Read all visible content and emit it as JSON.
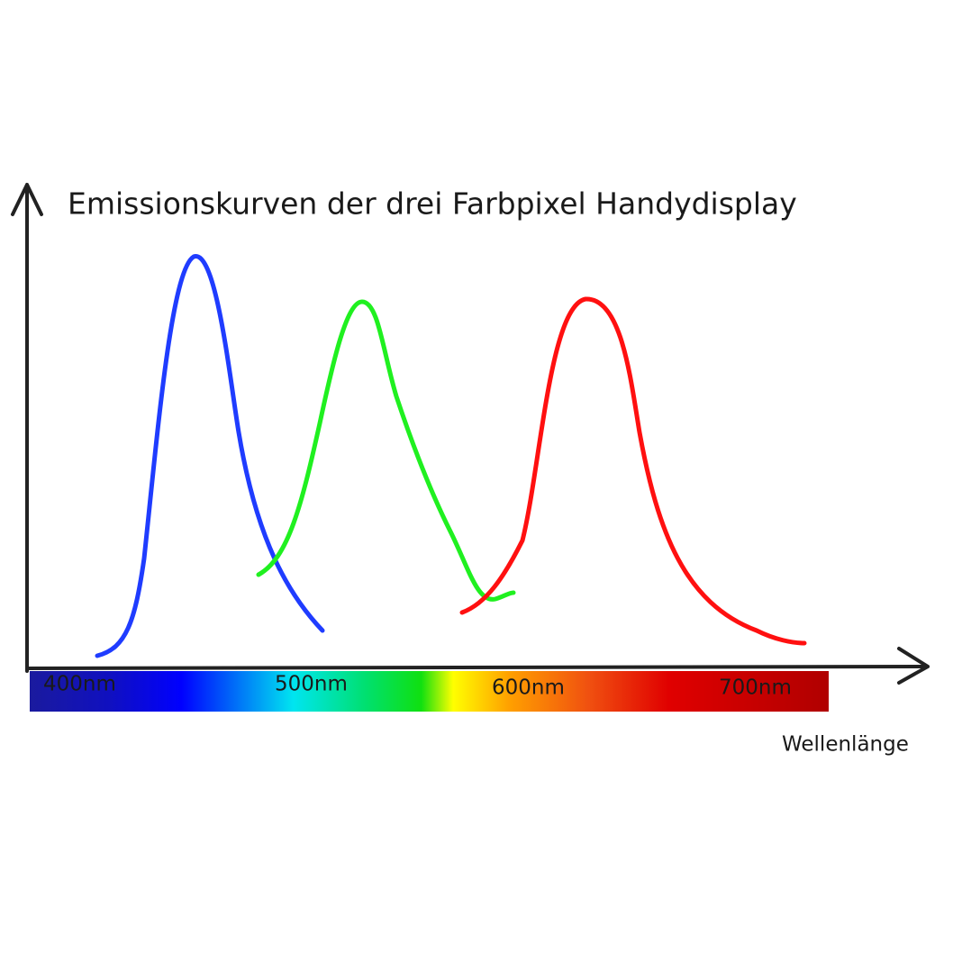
{
  "title": "Emissionskurven der drei Farbpixel Handydisplay",
  "x_axis": {
    "label": "Wellenlänge",
    "ticks": [
      "400nm",
      "500nm",
      "600nm",
      "700nm"
    ]
  }
}
